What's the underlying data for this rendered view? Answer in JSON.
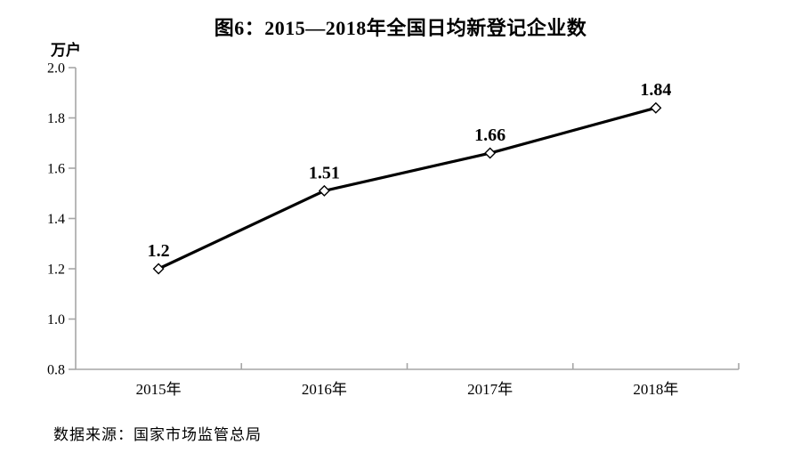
{
  "chart_data": {
    "type": "line",
    "title": "图6：2015—2018年全国日均新登记企业数",
    "unit_label": "万户",
    "source": "数据来源：国家市场监管总局",
    "categories": [
      "2015年",
      "2016年",
      "2017年",
      "2018年"
    ],
    "series": [
      {
        "name": "全国日均新登记企业数",
        "values": [
          1.2,
          1.51,
          1.66,
          1.84
        ],
        "point_labels": [
          "1.2",
          "1.51",
          "1.66",
          "1.84"
        ]
      }
    ],
    "ylim": [
      0.8,
      2.0
    ],
    "ytick_labels": [
      "0.8",
      "1.0",
      "1.2",
      "1.4",
      "1.6",
      "1.8",
      "2.0"
    ],
    "grid": false,
    "legend": "none",
    "colors": {
      "line": "#000000",
      "marker_fill": "#ffffff",
      "marker_stroke": "#000000",
      "axis": "#a6a6a6",
      "text": "#000000"
    }
  }
}
